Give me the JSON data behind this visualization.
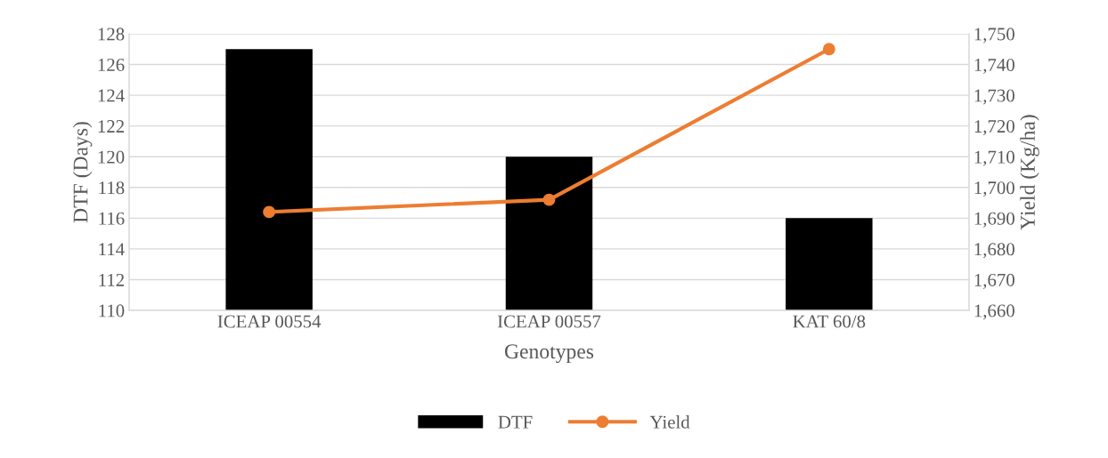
{
  "chart_data": {
    "type": "bar",
    "xlabel": "Genotypes",
    "ylabel": "DTF (Days)",
    "y2label": "Yield (Kg/ha)",
    "categories": [
      "ICEAP 00554",
      "ICEAP 00557",
      "KAT 60/8"
    ],
    "series": [
      {
        "name": "DTF",
        "color": "#000000",
        "values": [
          127,
          120,
          116
        ]
      },
      {
        "name": "Yield",
        "type": "line",
        "axis": "y2",
        "color": "#ed7d31",
        "marker": "circle",
        "values": [
          1692,
          1696,
          1745
        ]
      }
    ],
    "ylim": [
      110,
      128
    ],
    "yticks": [
      110,
      112,
      114,
      116,
      118,
      120,
      122,
      124,
      126,
      128
    ],
    "y2lim": [
      1660,
      1750
    ],
    "y2ticks": [
      {
        "value": 1660,
        "label": "1,660"
      },
      {
        "value": 1670,
        "label": "1,670"
      },
      {
        "value": 1680,
        "label": "1,680"
      },
      {
        "value": 1690,
        "label": "1,690"
      },
      {
        "value": 1700,
        "label": "1,700"
      },
      {
        "value": 1710,
        "label": "1,710"
      },
      {
        "value": 1720,
        "label": "1,720"
      },
      {
        "value": 1730,
        "label": "1,730"
      },
      {
        "value": 1740,
        "label": "1,740"
      },
      {
        "value": 1750,
        "label": "1,750"
      }
    ],
    "grid": "y",
    "legend": "bottom"
  }
}
